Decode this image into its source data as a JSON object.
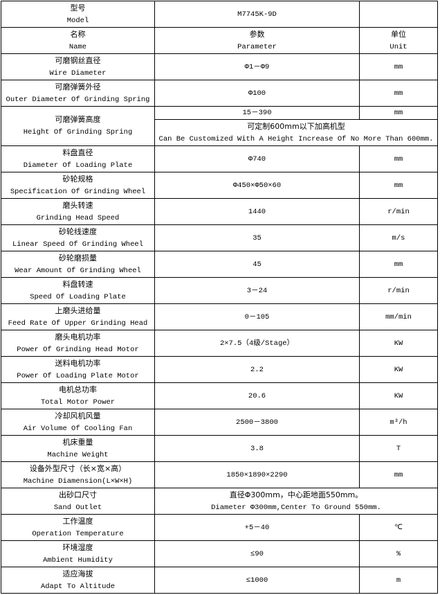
{
  "header": {
    "label_zh": "型号",
    "label_en": "Model",
    "value": "M7745K-9D"
  },
  "columns": {
    "name_zh": "名称",
    "name_en": "Name",
    "param_zh": "参数",
    "param_en": "Parameter",
    "unit_zh": "单位",
    "unit_en": "Unit"
  },
  "rows": [
    {
      "zh": "可磨钢丝直径",
      "en": "Wire Diameter",
      "param": "Φ1－Φ9",
      "unit": "mm"
    },
    {
      "zh": "可磨弹簧外径",
      "en": "Outer Diameter Of Grinding Spring",
      "param": "Φ100",
      "unit": "mm"
    },
    {
      "zh": "可磨弹簧高度",
      "en": "Height Of Grinding Spring",
      "param": "15－390",
      "unit": "mm",
      "note_zh": "可定制600mm以下加高机型",
      "note_en": "Can Be Customized With A Height Increase Of No More Than 600mm."
    },
    {
      "zh": "料盘直径",
      "en": "Diameter Of Loading Plate",
      "param": "Φ740",
      "unit": "mm"
    },
    {
      "zh": "砂轮规格",
      "en": "Specification Of Grinding Wheel",
      "param": "Φ450×Φ50×60",
      "unit": "mm"
    },
    {
      "zh": "磨头转速",
      "en": "Grinding Head Speed",
      "param": "1440",
      "unit": "r/min"
    },
    {
      "zh": "砂轮线速度",
      "en": "Linear Speed Of Grinding Wheel",
      "param": "35",
      "unit": "m/s"
    },
    {
      "zh": "砂轮磨损量",
      "en": "Wear Amount Of Grinding Wheel",
      "param": "45",
      "unit": "mm"
    },
    {
      "zh": "料盘转速",
      "en": "Speed Of Loading Plate",
      "param": "3－24",
      "unit": "r/min"
    },
    {
      "zh": "上磨头进给量",
      "en": "Feed Rate Of Upper Grinding Head",
      "param": "0－105",
      "unit": "mm/min"
    },
    {
      "zh": "磨头电机功率",
      "en": "Power Of Grinding Head Motor",
      "param": "2×7.5（4级/Stage）",
      "unit": "KW"
    },
    {
      "zh": "送料电机功率",
      "en": "Power Of Loading Plate Motor",
      "param": "2.2",
      "unit": "KW"
    },
    {
      "zh": "电机总功率",
      "en": "Total Motor Power",
      "param": "20.6",
      "unit": "KW"
    },
    {
      "zh": "冷却风机风量",
      "en": "Air Volume Of Cooling Fan",
      "param": "2500－3800",
      "unit": "m³/h"
    },
    {
      "zh": "机床重量",
      "en": "Machine Weight",
      "param": "3.8",
      "unit": "T"
    },
    {
      "zh": "设备外型尺寸（长×宽×高）",
      "en": "Machine Diamension(L×W×H)",
      "param": "1850×1890×2290",
      "unit": "mm"
    },
    {
      "zh": "出砂口尺寸",
      "en": "Sand Outlet",
      "param_zh": "直径Φ300mm，中心距地面550mm。",
      "param_en": "Diameter Φ300mm,Center To Ground 550mm."
    },
    {
      "zh": "工作温度",
      "en": "Operation Temperature",
      "param": "+5－40",
      "unit": "℃"
    },
    {
      "zh": "环境湿度",
      "en": "Ambient Humidity",
      "param": "≤90",
      "unit": "%"
    },
    {
      "zh": "适应海拔",
      "en": "Adapt To Altitude",
      "param": "≤1000",
      "unit": "m"
    }
  ]
}
